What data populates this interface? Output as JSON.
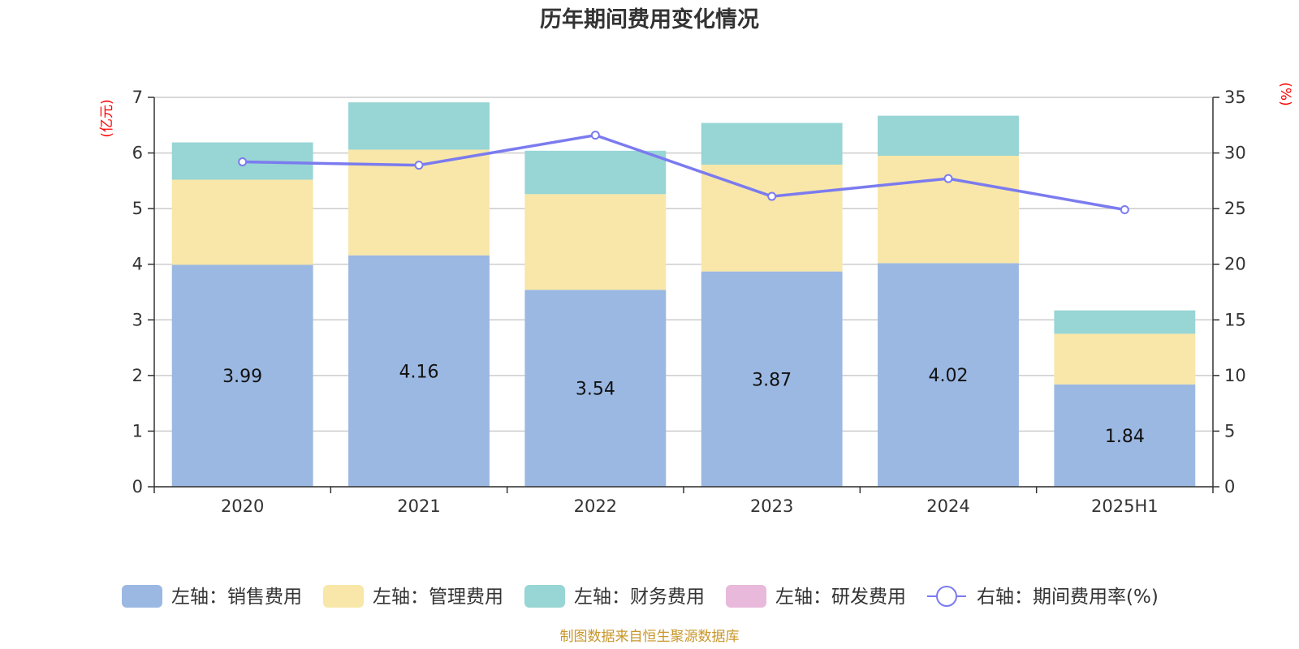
{
  "chart_data": {
    "type": "bar",
    "title": "历年期间费用变化情况",
    "categories": [
      "2020",
      "2021",
      "2022",
      "2023",
      "2024",
      "2025H1"
    ],
    "left_axis": {
      "unit": "(亿元)",
      "ylim": [
        0,
        7
      ],
      "ticks": [
        "0",
        "1",
        "2",
        "3",
        "4",
        "5",
        "6",
        "7"
      ]
    },
    "right_axis": {
      "unit": "(%)",
      "ylim": [
        0,
        35
      ],
      "ticks": [
        "0",
        "5",
        "10",
        "15",
        "20",
        "25",
        "30",
        "35"
      ]
    },
    "grid": true,
    "stacked": true,
    "series": [
      {
        "name": "左轴：销售费用",
        "axis": "left",
        "type": "bar",
        "color": "#9bb8e2",
        "values": [
          3.99,
          4.16,
          3.54,
          3.87,
          4.02,
          1.84
        ],
        "labels": [
          "3.99",
          "4.16",
          "3.54",
          "3.87",
          "4.02",
          "1.84"
        ]
      },
      {
        "name": "左轴：管理费用",
        "axis": "left",
        "type": "bar",
        "color": "#f8e7a8",
        "values": [
          1.53,
          1.9,
          1.72,
          1.92,
          1.93,
          0.91
        ]
      },
      {
        "name": "左轴：财务费用",
        "axis": "left",
        "type": "bar",
        "color": "#98d5d5",
        "values": [
          0.67,
          0.85,
          0.78,
          0.75,
          0.72,
          0.42
        ]
      },
      {
        "name": "左轴：研发费用",
        "axis": "left",
        "type": "bar",
        "color": "#e8b9da",
        "values": [
          0,
          0,
          0,
          0,
          0,
          0
        ]
      },
      {
        "name": "右轴：期间费用率(%)",
        "axis": "right",
        "type": "line",
        "color": "#7b7bef",
        "values": [
          29.2,
          28.9,
          31.6,
          26.1,
          27.7,
          24.9
        ]
      }
    ],
    "legend_position": "bottom",
    "source": "制图数据来自恒生聚源数据库"
  }
}
